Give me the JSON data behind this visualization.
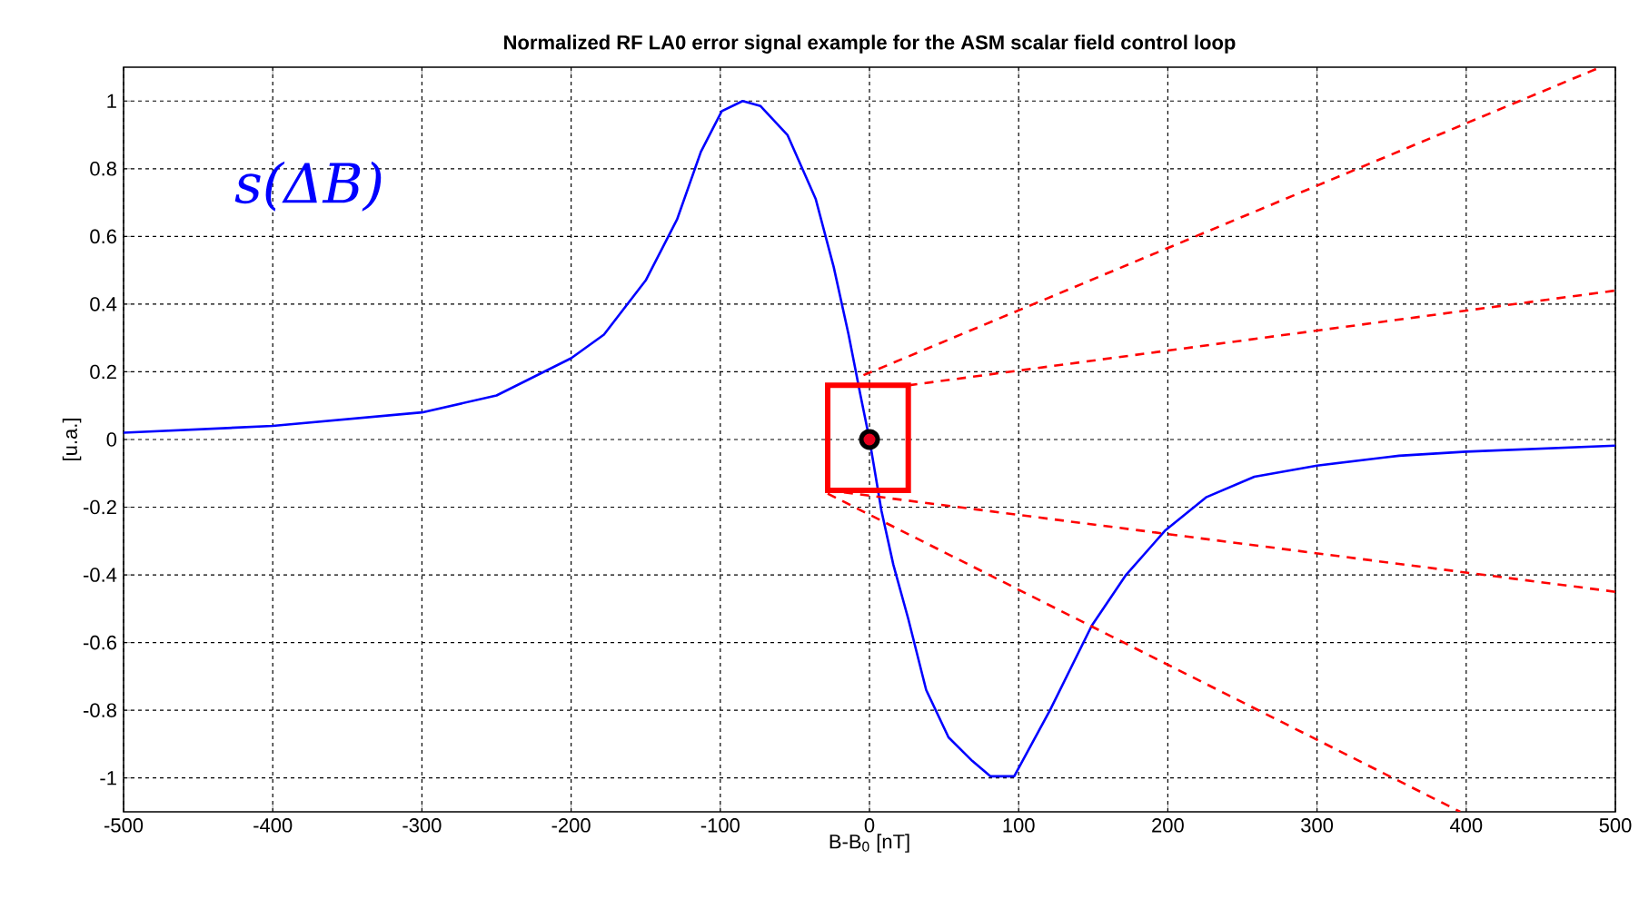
{
  "chart_data": {
    "type": "line",
    "title": "Normalized RF LA0 error signal example for the ASM scalar field control loop",
    "xlabel": "B-B$_{0}$ [nT]",
    "ylabel": "[u.a.]",
    "annotations": [
      "s(ΔB)"
    ],
    "xlim": [
      -500,
      500
    ],
    "ylim": [
      -1.1,
      1.1
    ],
    "xticks": [
      -500,
      -400,
      -300,
      -200,
      -100,
      0,
      100,
      200,
      300,
      400,
      500
    ],
    "yticks": [
      -1,
      -0.8,
      -0.6,
      -0.4,
      -0.2,
      0,
      0.2,
      0.4,
      0.6,
      0.8,
      1
    ],
    "grid": true,
    "series": [
      {
        "color": "#0000ff",
        "line_style": "solid",
        "x": [
          -500,
          -400,
          -300,
          -250,
          -200,
          -178,
          -150,
          -129,
          -113,
          -99,
          -85,
          -73,
          -55,
          -36,
          -24,
          -14,
          -6,
          0,
          8,
          16,
          26,
          38,
          53,
          69,
          81,
          97,
          121,
          149,
          172,
          198,
          226,
          258,
          300,
          355,
          400,
          500
        ],
        "values": [
          0.02,
          0.04,
          0.08,
          0.13,
          0.24,
          0.31,
          0.47,
          0.65,
          0.85,
          0.97,
          1.0,
          0.985,
          0.9,
          0.71,
          0.51,
          0.31,
          0.13,
          0.0,
          -0.21,
          -0.37,
          -0.53,
          -0.74,
          -0.88,
          -0.95,
          -0.995,
          -0.995,
          -0.8,
          -0.55,
          -0.4,
          -0.27,
          -0.17,
          -0.11,
          -0.077,
          -0.048,
          -0.036,
          -0.018
        ]
      },
      {
        "color": "#ff0000",
        "line_style": "dashed",
        "x": [
          -4,
          490
        ],
        "values": [
          0.19,
          1.1
        ]
      },
      {
        "color": "#ff0000",
        "line_style": "dashed",
        "x": [
          26,
          500
        ],
        "values": [
          0.16,
          0.44
        ]
      },
      {
        "color": "#ff0000",
        "line_style": "dashed",
        "x": [
          -28,
          500
        ],
        "values": [
          -0.15,
          -0.45
        ]
      },
      {
        "color": "#ff0000",
        "line_style": "dashed",
        "x": [
          -28,
          396
        ],
        "values": [
          -0.16,
          -1.1
        ]
      },
      {
        "type": "scatter",
        "color": "#e8001c",
        "marker": "circle",
        "x": [
          0
        ],
        "values": [
          0
        ]
      }
    ]
  }
}
